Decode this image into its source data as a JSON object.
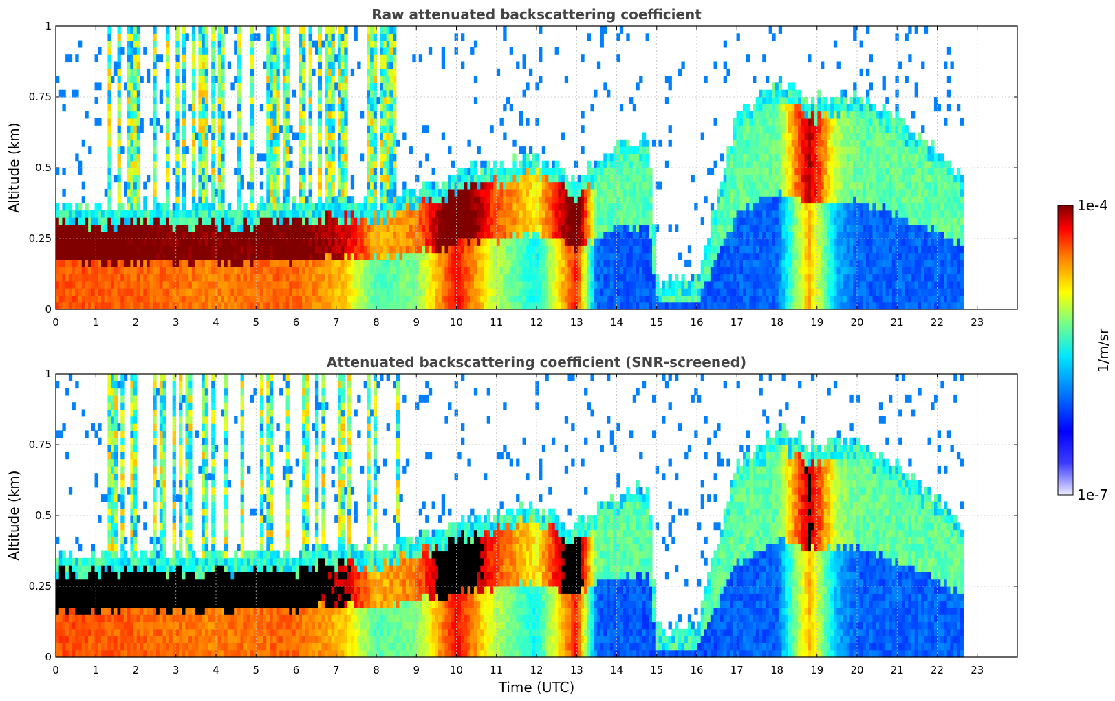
{
  "chart_data": [
    {
      "type": "heatmap",
      "title": "Raw attenuated backscattering coefficient",
      "xlabel": "",
      "ylabel": "Altitude (km)",
      "xlim": [
        0,
        24
      ],
      "ylim": [
        0,
        1
      ],
      "xticks": [
        "0",
        "1",
        "2",
        "3",
        "4",
        "5",
        "6",
        "7",
        "8",
        "9",
        "10",
        "11",
        "12",
        "13",
        "14",
        "15",
        "16",
        "17",
        "18",
        "19",
        "20",
        "21",
        "22",
        "23"
      ],
      "yticks": [
        "0",
        "0.25",
        "0.5",
        "0.75",
        "1"
      ],
      "grid": true,
      "data_end_hour": 22.65,
      "screened": false
    },
    {
      "type": "heatmap",
      "title": "Attenuated backscattering coefficient (SNR-screened)",
      "xlabel": "Time (UTC)",
      "ylabel": "Altitude (km)",
      "xlim": [
        0,
        24
      ],
      "ylim": [
        0,
        1
      ],
      "xticks": [
        "0",
        "1",
        "2",
        "3",
        "4",
        "5",
        "6",
        "7",
        "8",
        "9",
        "10",
        "11",
        "12",
        "13",
        "14",
        "15",
        "16",
        "17",
        "18",
        "19",
        "20",
        "21",
        "22",
        "23"
      ],
      "yticks": [
        "0",
        "0.25",
        "0.5",
        "0.75",
        "1"
      ],
      "grid": true,
      "data_end_hour": 22.65,
      "screened": true
    }
  ],
  "colorbar": {
    "label": "1/m/sr",
    "max_label": "1e-4",
    "min_label": "1e-7",
    "scale": "log",
    "colormap": "jet",
    "low_color": "#e8e8ff",
    "high_color": "#800000",
    "saturation_color": "#000000"
  }
}
